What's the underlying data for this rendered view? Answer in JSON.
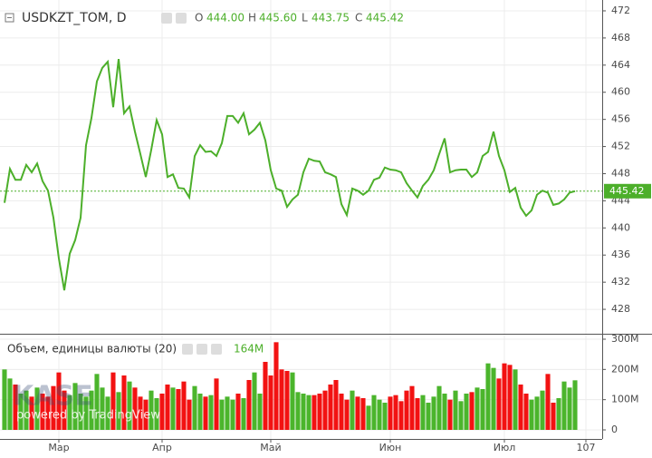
{
  "chart_data": {
    "type": "line",
    "title": "USDKZT_TOM, D",
    "legend_keys": [
      "O",
      "H",
      "L",
      "C"
    ],
    "legend_values": [
      444.0,
      445.6,
      443.75,
      445.42
    ],
    "legend_value_labels": [
      "444.00",
      "445.60",
      "443.75",
      "445.42"
    ],
    "watermark": "KASE",
    "watermark_sub": "powered by TradingView",
    "x": [
      0,
      1,
      2,
      3,
      4,
      5,
      6,
      7,
      8,
      9,
      10,
      11,
      12,
      13,
      14,
      15,
      16,
      17,
      18,
      19,
      20,
      21,
      22,
      23,
      24,
      25,
      26,
      27,
      28,
      29,
      30,
      31,
      32,
      33,
      34,
      35,
      36,
      37,
      38,
      39,
      40,
      41,
      42,
      43,
      44,
      45,
      46,
      47,
      48,
      49,
      50,
      51,
      52,
      53,
      54,
      55,
      56,
      57,
      58,
      59,
      60,
      61,
      62,
      63,
      64,
      65,
      66,
      67,
      68,
      69,
      70,
      71,
      72,
      73,
      74,
      75,
      76,
      77,
      78,
      79,
      80,
      81,
      82,
      83,
      84,
      85,
      86,
      87,
      88,
      89,
      90,
      91,
      92,
      93,
      94,
      95,
      96,
      97,
      98,
      99,
      100,
      101,
      102,
      103,
      104,
      105
    ],
    "xlim": [
      -0.83,
      110
    ],
    "xticks": [
      {
        "value": 10,
        "label": "Мар"
      },
      {
        "value": 29,
        "label": "Апр"
      },
      {
        "value": 49,
        "label": "Май"
      },
      {
        "value": 71,
        "label": "Июн"
      },
      {
        "value": 92,
        "label": "Июл"
      },
      107
    ],
    "ylim": [
      424.4,
      473.6
    ],
    "yticks": [
      428,
      432,
      436,
      440,
      444,
      448,
      452,
      456,
      460,
      464,
      468,
      472
    ],
    "y2lim": [
      -30,
      312
    ],
    "y2ticks": [
      0,
      {
        "value": 100,
        "label": "100M"
      },
      {
        "value": 200,
        "label": "200M"
      },
      {
        "value": 300,
        "label": "300M"
      }
    ],
    "grid": true,
    "series": [
      {
        "name": "USDKZT_TOM",
        "color": "#4caf2a",
        "values": [
          443.7,
          448.7,
          447.1,
          447.1,
          449.3,
          448.2,
          449.5,
          446.9,
          445.5,
          441.5,
          435.5,
          430.8,
          436.2,
          438.2,
          441.5,
          452.2,
          456.2,
          461.6,
          463.6,
          464.5,
          457.8,
          464.9,
          456.9,
          457.9,
          454.2,
          450.9,
          447.5,
          451.5,
          455.9,
          453.8,
          447.5,
          447.9,
          445.9,
          445.8,
          444.5,
          450.6,
          452.2,
          451.2,
          451.3,
          450.6,
          452.5,
          456.5,
          456.5,
          455.5,
          456.9,
          453.8,
          454.5,
          455.5,
          452.9,
          448.5,
          445.8,
          445.5,
          443.1,
          444.2,
          444.9,
          448.2,
          450.2,
          449.9,
          449.8,
          448.2,
          447.9,
          447.5,
          443.5,
          441.9,
          445.8,
          445.5,
          444.9,
          445.5,
          447.1,
          447.4,
          448.9,
          448.6,
          448.5,
          448.2,
          446.6,
          445.5,
          444.5,
          446.2,
          447.1,
          448.5,
          450.9,
          453.2,
          448.2,
          448.5,
          448.6,
          448.6,
          447.5,
          448.2,
          450.6,
          451.2,
          454.2,
          450.6,
          448.5,
          445.3,
          445.9,
          443.0,
          441.8,
          442.6,
          444.9,
          445.5,
          445.2,
          443.4,
          443.6,
          444.2,
          445.2,
          445.42
        ]
      },
      {
        "name": "Объем, единицы валюты (20)",
        "type": "bar",
        "axis": "y2",
        "up_color": "#4bb52c",
        "down_color": "#f21212",
        "values": [
          200,
          170,
          150,
          120,
          130,
          110,
          140,
          120,
          110,
          145,
          190,
          130,
          115,
          155,
          120,
          110,
          130,
          185,
          140,
          110,
          190,
          125,
          180,
          160,
          140,
          110,
          100,
          130,
          105,
          120,
          150,
          140,
          135,
          160,
          100,
          145,
          120,
          110,
          115,
          170,
          100,
          110,
          100,
          120,
          105,
          165,
          190,
          120,
          225,
          180,
          290,
          200,
          195,
          190,
          125,
          120,
          115,
          115,
          120,
          130,
          150,
          165,
          120,
          100,
          130,
          110,
          105,
          80,
          115,
          100,
          90,
          110,
          115,
          95,
          130,
          145,
          105,
          115,
          90,
          110,
          145,
          120,
          100,
          130,
          95,
          120,
          125,
          140,
          135,
          220,
          205,
          170,
          220,
          215,
          200,
          150,
          120,
          100,
          110,
          130,
          185,
          90,
          105,
          160,
          140,
          164
        ],
        "value_labels": [
          null,
          null,
          null,
          null,
          null,
          null,
          null,
          null,
          null,
          null,
          null,
          null,
          null,
          null,
          null,
          null,
          null,
          null,
          null,
          null,
          null,
          null,
          null,
          null,
          null,
          null,
          null,
          null,
          null,
          null,
          null,
          null,
          null,
          null,
          null,
          null,
          null,
          null,
          null,
          null,
          null,
          null,
          null,
          null,
          null,
          null,
          null,
          null,
          null,
          null,
          null,
          null,
          null,
          null,
          null,
          null,
          null,
          null,
          null,
          null,
          null,
          null,
          null,
          null,
          null,
          null,
          null,
          null,
          null,
          null,
          null,
          null,
          null,
          null,
          null,
          null,
          null,
          null,
          null,
          null,
          null,
          null,
          null,
          null,
          null,
          null,
          null,
          null,
          null,
          null,
          null,
          null,
          null,
          null,
          null,
          null,
          null,
          null,
          null,
          null,
          null,
          null,
          null,
          null,
          null,
          "164M"
        ]
      }
    ]
  }
}
